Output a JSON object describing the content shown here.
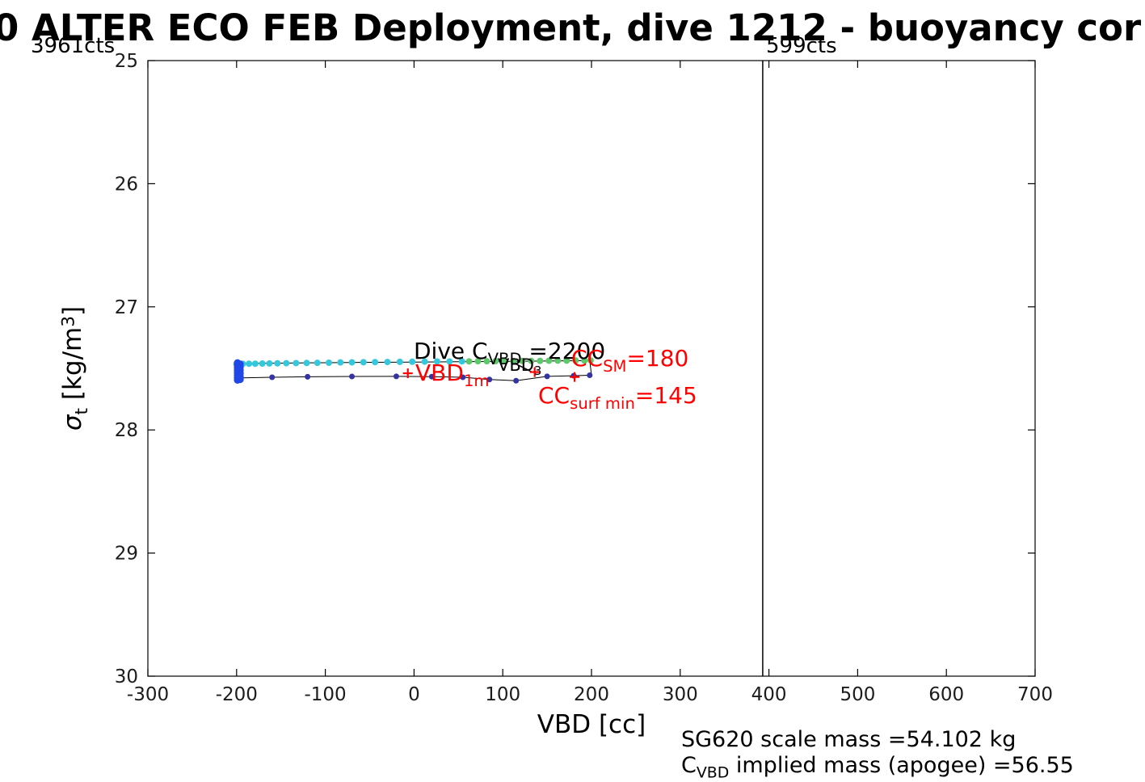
{
  "title": "0 ALTER ECO FEB Deployment, dive 1212 - buoyancy cor",
  "annotations": {
    "left_counts": "3961cts",
    "line_counts": "599cts",
    "dive_c": {
      "pre": "Dive C",
      "sub": "VBD",
      "post": " =2200"
    },
    "vbd_1m": {
      "pre": "VBD",
      "sub": "1m",
      "post": ""
    },
    "vbd_3": {
      "pre": "VBD",
      "sub": "3",
      "post": ""
    },
    "cc_sm": {
      "pre": "CC",
      "sub": "SM",
      "post": "=180"
    },
    "cc_surf_min": {
      "pre": "CC",
      "sub": "surf min",
      "post": "=145"
    },
    "scale_mass": "SG620 scale mass =54.102 kg",
    "implied_mass": {
      "pre": "C",
      "sub": "VBD",
      "post": " implied mass (apogee) =56.55"
    }
  },
  "axes": {
    "xlabel": "VBD [cc]",
    "ylabel": {
      "sigma": "σ",
      "sub": "t",
      "unit_open": " [kg/m",
      "sup": "3",
      "unit_close": "]"
    }
  },
  "chart_data": {
    "type": "scatter",
    "title": "0 ALTER ECO FEB Deployment, dive 1212 - buoyancy cor",
    "xlabel": "VBD [cc]",
    "ylabel": "sigma_t [kg/m3]",
    "xlim": [
      -300,
      700
    ],
    "ylim": [
      25,
      30
    ],
    "y_inverted": true,
    "grid": false,
    "xticks": [
      -300,
      -200,
      -100,
      0,
      100,
      200,
      300,
      400,
      500,
      600,
      700
    ],
    "yticks": [
      25,
      26,
      27,
      28,
      29,
      30
    ],
    "vertical_line_x": 393,
    "axis_color": "#000000",
    "outline": {
      "color": "#000000",
      "points": [
        [
          -199,
          27.46
        ],
        [
          -150,
          27.457
        ],
        [
          -100,
          27.454
        ],
        [
          -50,
          27.451
        ],
        [
          0,
          27.449
        ],
        [
          50,
          27.446
        ],
        [
          100,
          27.443
        ],
        [
          150,
          27.44
        ],
        [
          198,
          27.437
        ],
        [
          200,
          27.555
        ],
        [
          180,
          27.56
        ],
        [
          150,
          27.565
        ],
        [
          115,
          27.6
        ],
        [
          85,
          27.59
        ],
        [
          55,
          27.572
        ],
        [
          20,
          27.567
        ],
        [
          -20,
          27.565
        ],
        [
          -70,
          27.566
        ],
        [
          -120,
          27.568
        ],
        [
          -160,
          27.572
        ],
        [
          -199,
          27.578
        ],
        [
          -199,
          27.46
        ]
      ]
    },
    "annotation_lines": [
      {
        "from": [
          118,
          27.475
        ],
        "to": [
          133,
          27.53
        ]
      }
    ],
    "series": [
      {
        "name": "dive-points",
        "color": "#35c8dc",
        "marker": "dot",
        "size": 4,
        "points": [
          [
            -200,
            27.465
          ],
          [
            -193,
            27.463
          ],
          [
            -186,
            27.462
          ],
          [
            -179,
            27.462
          ],
          [
            -171,
            27.461
          ],
          [
            -163,
            27.46
          ],
          [
            -154,
            27.459
          ],
          [
            -144,
            27.458
          ],
          [
            -133,
            27.457
          ],
          [
            -121,
            27.456
          ],
          [
            -109,
            27.455
          ],
          [
            -96,
            27.454
          ],
          [
            -83,
            27.452
          ],
          [
            -70,
            27.451
          ],
          [
            -57,
            27.45
          ],
          [
            -44,
            27.449
          ],
          [
            -30,
            27.448
          ],
          [
            -16,
            27.447
          ],
          [
            -2,
            27.446
          ],
          [
            12,
            27.445
          ],
          [
            26,
            27.444
          ],
          [
            40,
            27.444
          ],
          [
            54,
            27.443
          ]
        ]
      },
      {
        "name": "climb-points",
        "color": "#5dc96a",
        "marker": "dot",
        "size": 4,
        "points": [
          [
            62,
            27.443
          ],
          [
            72,
            27.442
          ],
          [
            82,
            27.442
          ],
          [
            92,
            27.441
          ],
          [
            102,
            27.441
          ],
          [
            112,
            27.44
          ],
          [
            122,
            27.44
          ],
          [
            132,
            27.439
          ],
          [
            142,
            27.439
          ],
          [
            152,
            27.438
          ],
          [
            162,
            27.437
          ],
          [
            172,
            27.437
          ],
          [
            182,
            27.436
          ],
          [
            192,
            27.436
          ],
          [
            199,
            27.435
          ]
        ]
      },
      {
        "name": "apogee-points",
        "color": "#3333a2",
        "marker": "dot",
        "size": 3.5,
        "points": [
          [
            -160,
            27.572
          ],
          [
            -120,
            27.568
          ],
          [
            -70,
            27.566
          ],
          [
            -20,
            27.565
          ],
          [
            20,
            27.567
          ],
          [
            55,
            27.572
          ],
          [
            85,
            27.59
          ],
          [
            115,
            27.6
          ],
          [
            150,
            27.565
          ],
          [
            180,
            27.56
          ],
          [
            198,
            27.556
          ]
        ]
      },
      {
        "name": "surface-cluster",
        "color": "#2247e8",
        "marker": "dot",
        "size": 4.5,
        "points": [
          [
            -199,
            27.455
          ],
          [
            -199,
            27.475
          ],
          [
            -199,
            27.495
          ],
          [
            -199,
            27.515
          ],
          [
            -199,
            27.535
          ],
          [
            -199,
            27.555
          ],
          [
            -199,
            27.575
          ],
          [
            -199,
            27.595
          ],
          [
            -196,
            27.465
          ],
          [
            -196,
            27.49
          ],
          [
            -196,
            27.515
          ],
          [
            -196,
            27.54
          ],
          [
            -196,
            27.565
          ],
          [
            -196,
            27.59
          ]
        ]
      },
      {
        "name": "red-plus-markers",
        "color": "#ff0000",
        "marker": "plus",
        "size": 6,
        "points": [
          [
            -7,
            27.54
          ],
          [
            136,
            27.53
          ],
          [
            181,
            27.57
          ]
        ]
      }
    ]
  }
}
